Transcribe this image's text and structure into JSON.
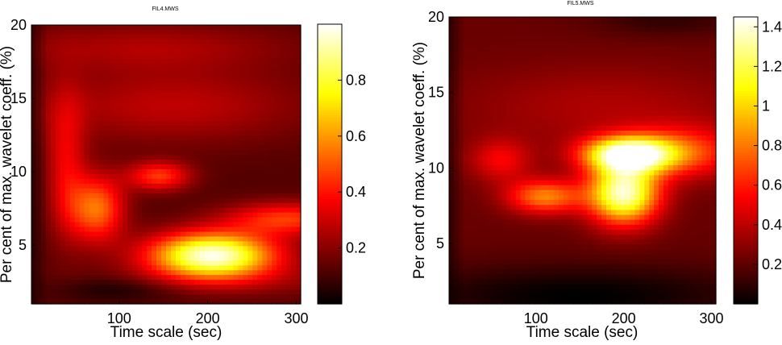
{
  "chart_data": [
    {
      "type": "heatmap",
      "title": "FIL4.MWS",
      "xlabel": "Time scale (sec)",
      "ylabel": "Per cent of max. wavelet coeff. (%)",
      "xlim": [
        1,
        305
      ],
      "ylim": [
        1,
        20
      ],
      "xticks": [
        100,
        200,
        300
      ],
      "yticks": [
        5,
        10,
        15,
        20
      ],
      "colormap": "hot",
      "colorbar": {
        "range": [
          0,
          1.0
        ],
        "ticks": [
          0.2,
          0.4,
          0.6,
          0.8
        ]
      },
      "background": 0.12,
      "blobs": [
        {
          "x": 205,
          "y": 4.3,
          "sx": 50,
          "sy": 1.1,
          "v": 0.86
        },
        {
          "x": 290,
          "y": 6.8,
          "sx": 50,
          "sy": 0.8,
          "v": 0.33
        },
        {
          "x": 75,
          "y": 7.5,
          "sx": 22,
          "sy": 1.6,
          "v": 0.42
        },
        {
          "x": 145,
          "y": 9.7,
          "sx": 25,
          "sy": 0.7,
          "v": 0.33
        },
        {
          "x": 40,
          "y": 10.5,
          "sx": 16,
          "sy": 3.5,
          "v": 0.22
        },
        {
          "x": 160,
          "y": 14.5,
          "sx": 110,
          "sy": 1.8,
          "v": 0.16
        },
        {
          "x": 130,
          "y": 18.5,
          "sx": 120,
          "sy": 1.2,
          "v": 0.13
        },
        {
          "x": 250,
          "y": 2.6,
          "sx": 120,
          "sy": 0.8,
          "v": 0.08
        },
        {
          "x": 100,
          "y": 2.0,
          "sx": 50,
          "sy": 0.6,
          "v": -0.1
        }
      ]
    },
    {
      "type": "heatmap",
      "title": "FIL5.MWS",
      "xlabel": "Time scale (sec)",
      "ylabel": "Per cent of max. wavelet coeff. (%)",
      "xlim": [
        1,
        305
      ],
      "ylim": [
        1,
        20
      ],
      "xticks": [
        100,
        200,
        300
      ],
      "yticks": [
        5,
        10,
        15,
        20
      ],
      "colormap": "hot",
      "colorbar": {
        "range": [
          0,
          1.45
        ],
        "ticks": [
          0.2,
          0.4,
          0.6,
          0.8,
          1,
          1.2,
          1.4
        ]
      },
      "background": 0.22,
      "blobs": [
        {
          "x": 205,
          "y": 10.9,
          "sx": 35,
          "sy": 0.8,
          "v": 1.15
        },
        {
          "x": 200,
          "y": 8.3,
          "sx": 28,
          "sy": 1.4,
          "v": 1.15
        },
        {
          "x": 110,
          "y": 8.1,
          "sx": 30,
          "sy": 0.8,
          "v": 0.6
        },
        {
          "x": 265,
          "y": 11.0,
          "sx": 50,
          "sy": 1.2,
          "v": 0.45
        },
        {
          "x": 60,
          "y": 10.5,
          "sx": 25,
          "sy": 1.0,
          "v": 0.3
        },
        {
          "x": 180,
          "y": 14.0,
          "sx": 120,
          "sy": 2.0,
          "v": 0.15
        },
        {
          "x": 150,
          "y": 1.5,
          "sx": 150,
          "sy": 1.5,
          "v": -0.22
        },
        {
          "x": 250,
          "y": 19.8,
          "sx": 60,
          "sy": 0.8,
          "v": -0.12
        }
      ]
    }
  ]
}
